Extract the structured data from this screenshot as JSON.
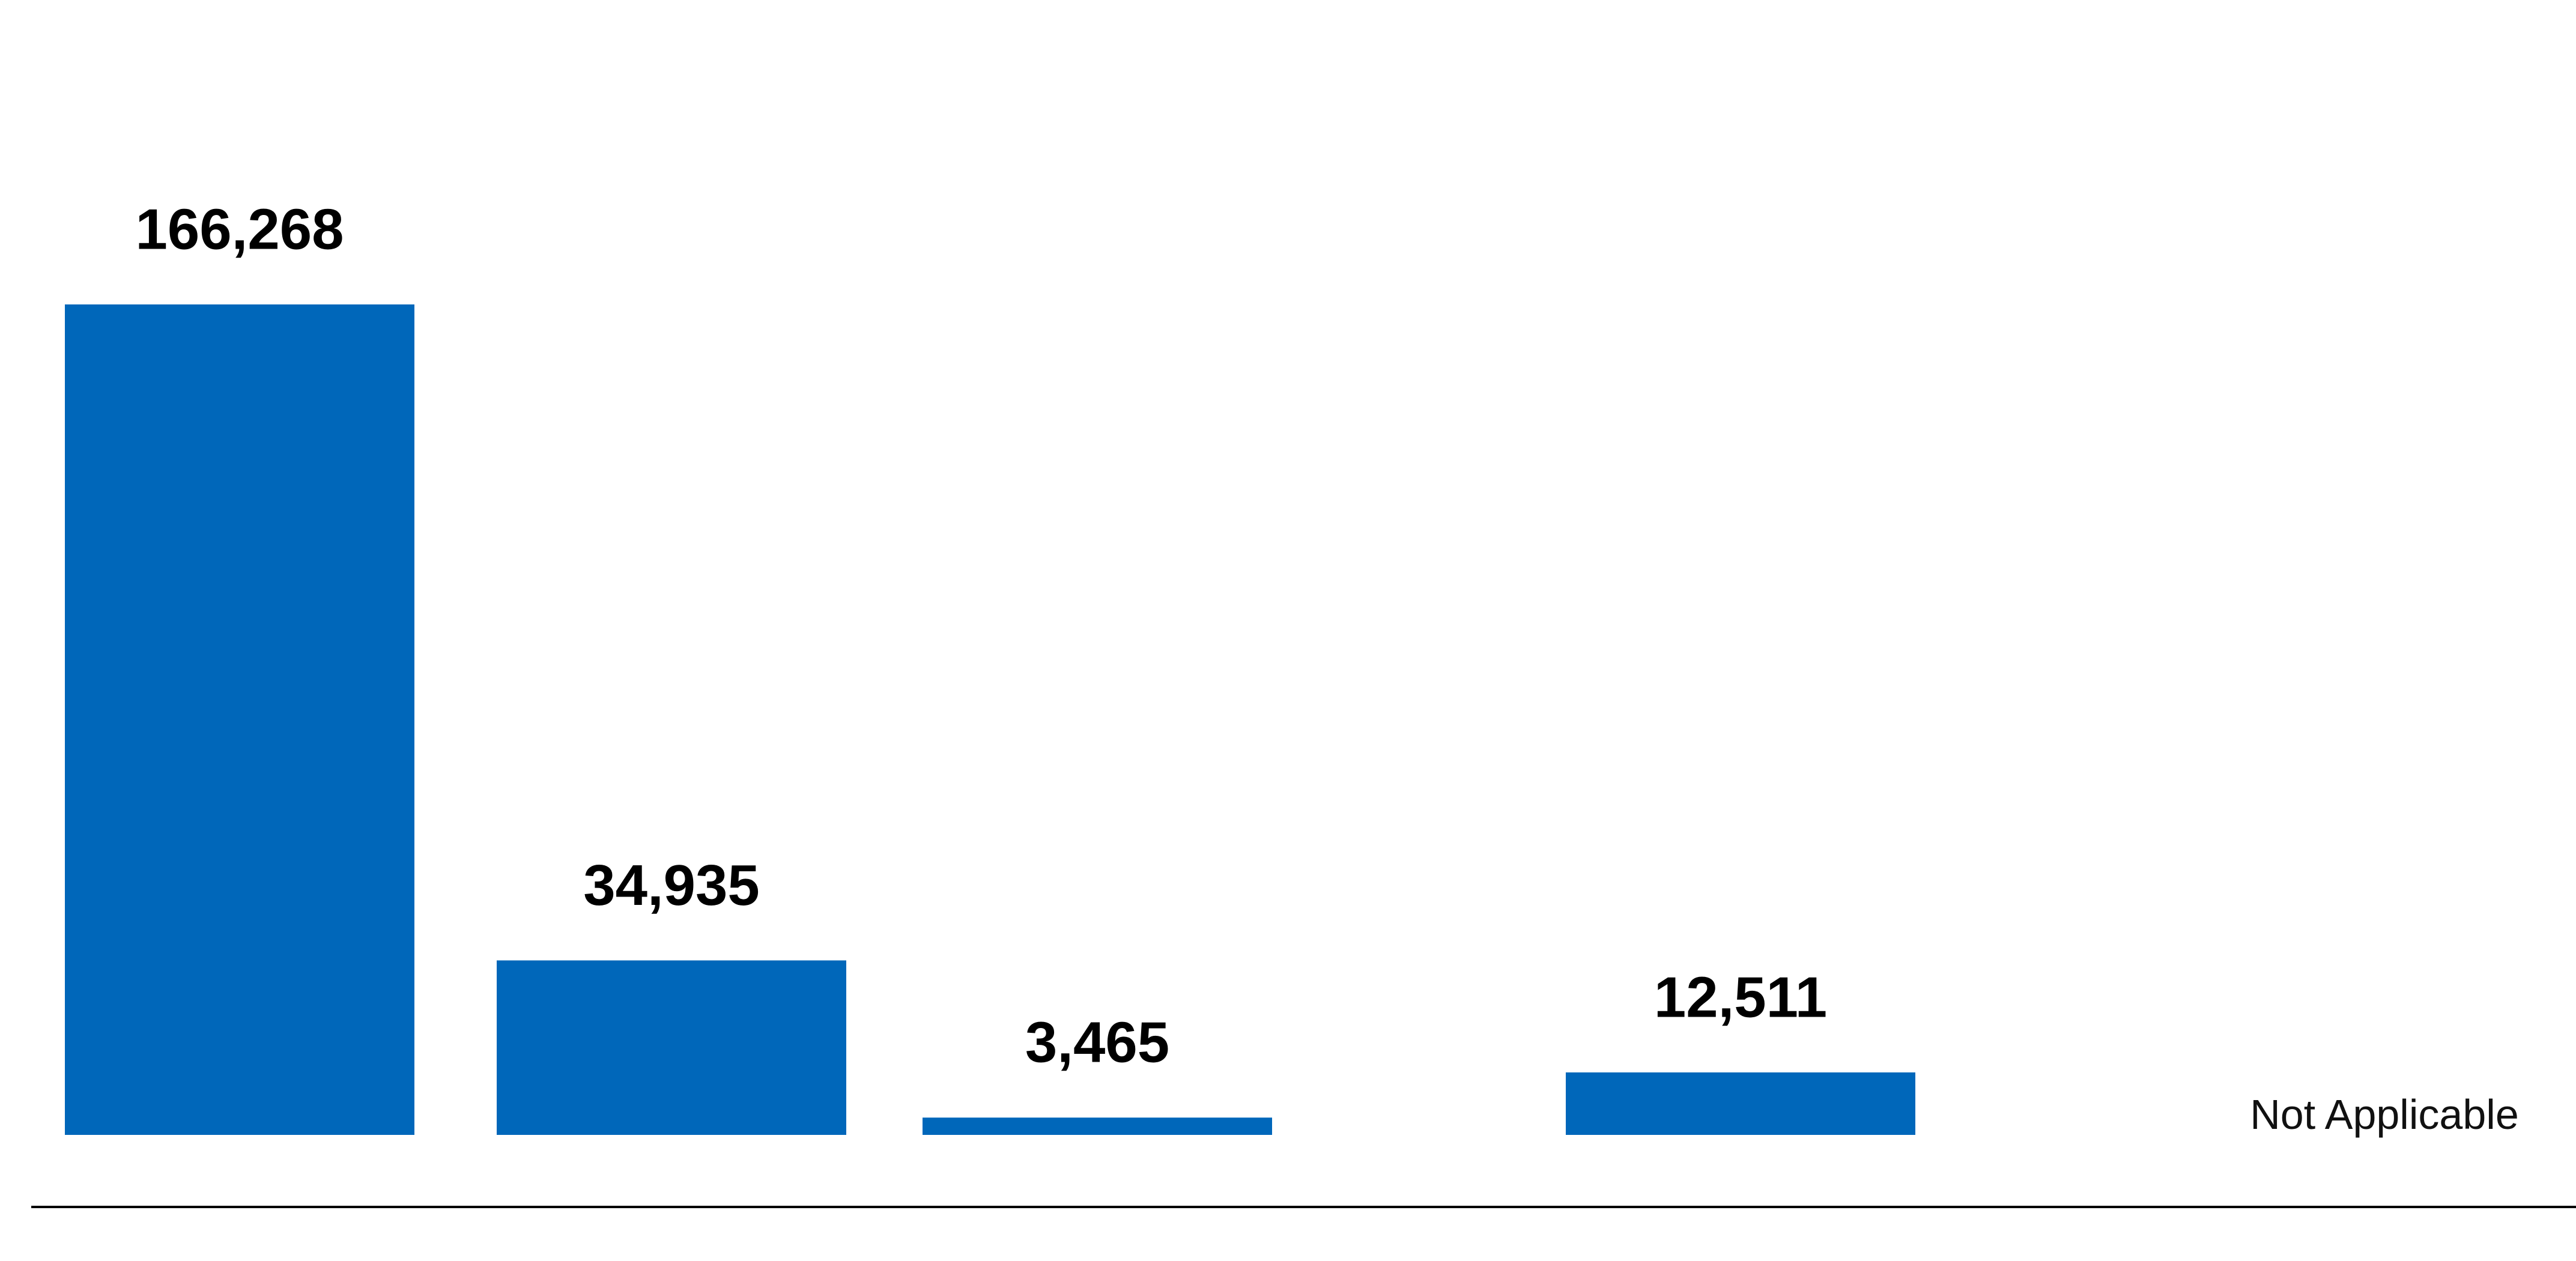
{
  "chart_data": {
    "type": "bar",
    "title": "",
    "xlabel": "",
    "ylabel": "",
    "ylim": [
      0,
      166268
    ],
    "grid": false,
    "legend": "none",
    "colors": {
      "bar": "#0067BA",
      "axis": "#000000",
      "label": "#000000"
    },
    "categories": [
      "",
      "",
      "",
      "",
      ""
    ],
    "values": [
      166268,
      34935,
      3465,
      12511,
      null
    ],
    "value_labels": [
      "166,268",
      "34,935",
      "3,465",
      "12,511",
      ""
    ],
    "missing_label": "Not Applicable"
  }
}
